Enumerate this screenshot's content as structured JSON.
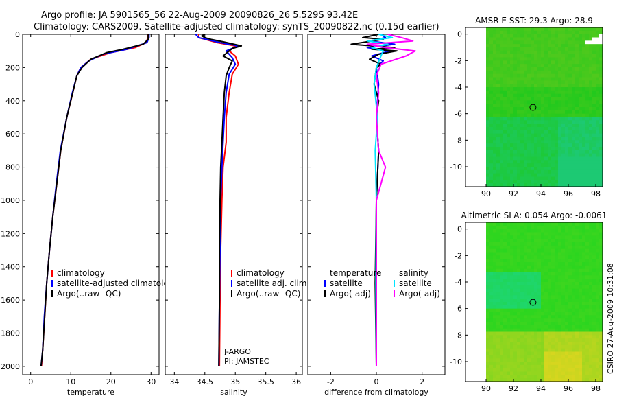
{
  "figure": {
    "title_line1": "Argo profile: JA 5901565_56 22-Aug-2009 20090826_26 5.529S 93.42E",
    "title_line2": "Climatology: CARS2009. Satellite-adjusted climatology: synTS_20090822.nc (0.15d earlier)",
    "credit": "CSIRO 27-Aug-2009 10:31:08",
    "colors": {
      "climatology": "#ff0000",
      "satellite": "#0000ff",
      "argo": "#000000",
      "salinity_satellite": "#00e5ff",
      "salinity_argo": "#ff00ff"
    }
  },
  "chart_data": [
    {
      "id": "temperature",
      "type": "line",
      "xlabel": "temperature",
      "xlim": [
        -2,
        32
      ],
      "ylim": [
        2050,
        0
      ],
      "xticks": [
        0,
        10,
        20,
        30
      ],
      "yticks": [
        0,
        200,
        400,
        600,
        800,
        1000,
        1200,
        1400,
        1600,
        1800,
        2000
      ],
      "legend": [
        "climatology",
        "satellite-adjusted climatology",
        "Argo(..raw -QC)"
      ],
      "series": [
        {
          "name": "climatology",
          "color": "#ff0000",
          "points": [
            [
              29.2,
              0
            ],
            [
              29.2,
              20
            ],
            [
              28.8,
              50
            ],
            [
              26,
              80
            ],
            [
              20,
              110
            ],
            [
              15,
              150
            ],
            [
              12.5,
              200
            ],
            [
              11.5,
              250
            ],
            [
              10.5,
              350
            ],
            [
              9,
              500
            ],
            [
              7.5,
              700
            ],
            [
              6.5,
              900
            ],
            [
              5.5,
              1100
            ],
            [
              4.7,
              1300
            ],
            [
              4,
              1500
            ],
            [
              3.5,
              1700
            ],
            [
              3,
              1900
            ],
            [
              2.7,
              2000
            ]
          ]
        },
        {
          "name": "satellite-adjusted climatology",
          "color": "#0000ff",
          "points": [
            [
              29.5,
              0
            ],
            [
              29.5,
              20
            ],
            [
              29,
              50
            ],
            [
              24,
              90
            ],
            [
              18,
              120
            ],
            [
              14.5,
              160
            ],
            [
              12.5,
              200
            ],
            [
              11.5,
              250
            ],
            [
              10.4,
              350
            ],
            [
              9,
              500
            ],
            [
              7.4,
              700
            ],
            [
              6.4,
              900
            ],
            [
              5.5,
              1100
            ],
            [
              4.7,
              1300
            ],
            [
              4,
              1500
            ],
            [
              3.4,
              1700
            ],
            [
              3,
              1900
            ],
            [
              2.6,
              2000
            ]
          ]
        },
        {
          "name": "Argo(..raw -QC)",
          "color": "#000000",
          "points": [
            [
              29.3,
              0
            ],
            [
              29.3,
              30
            ],
            [
              28,
              60
            ],
            [
              23,
              90
            ],
            [
              19,
              110
            ],
            [
              15,
              150
            ],
            [
              12.8,
              200
            ],
            [
              11.5,
              250
            ],
            [
              10.5,
              350
            ],
            [
              9,
              500
            ],
            [
              7.5,
              700
            ],
            [
              6.5,
              900
            ],
            [
              5.5,
              1100
            ],
            [
              4.7,
              1300
            ],
            [
              4,
              1500
            ],
            [
              3.5,
              1700
            ],
            [
              3,
              1900
            ],
            [
              2.6,
              2000
            ]
          ]
        }
      ]
    },
    {
      "id": "salinity",
      "type": "line",
      "xlabel": "salinity",
      "xlim": [
        33.85,
        36.1
      ],
      "ylim": [
        2050,
        0
      ],
      "xticks": [
        34,
        34.5,
        35,
        35.5,
        36
      ],
      "yticks": [
        0,
        200,
        400,
        600,
        800,
        1000,
        1200,
        1400,
        1600,
        1800,
        2000
      ],
      "legend": [
        "climatology",
        "satellite adj. clim.",
        "Argo(..raw -QC)"
      ],
      "annotation": [
        "J-ARGO",
        "PI: JAMSTEC"
      ],
      "series": [
        {
          "name": "climatology",
          "color": "#ff0000",
          "points": [
            [
              34.4,
              0
            ],
            [
              34.4,
              20
            ],
            [
              34.7,
              50
            ],
            [
              35,
              70
            ],
            [
              34.9,
              100
            ],
            [
              35,
              130
            ],
            [
              35.05,
              180
            ],
            [
              34.95,
              240
            ],
            [
              34.9,
              350
            ],
            [
              34.85,
              500
            ],
            [
              34.85,
              650
            ],
            [
              34.8,
              800
            ],
            [
              34.78,
              1000
            ],
            [
              34.76,
              1300
            ],
            [
              34.75,
              1600
            ],
            [
              34.74,
              2000
            ]
          ]
        },
        {
          "name": "satellite adj. clim.",
          "color": "#0000ff",
          "points": [
            [
              34.35,
              0
            ],
            [
              34.4,
              20
            ],
            [
              34.75,
              50
            ],
            [
              35.05,
              70
            ],
            [
              34.85,
              100
            ],
            [
              34.95,
              140
            ],
            [
              35.0,
              180
            ],
            [
              34.9,
              240
            ],
            [
              34.85,
              350
            ],
            [
              34.82,
              500
            ],
            [
              34.8,
              650
            ],
            [
              34.78,
              800
            ],
            [
              34.76,
              1000
            ],
            [
              34.75,
              1300
            ],
            [
              34.74,
              1600
            ],
            [
              34.73,
              2000
            ]
          ]
        },
        {
          "name": "Argo(..raw -QC)",
          "color": "#000000",
          "points": [
            [
              34.5,
              0
            ],
            [
              34.45,
              10
            ],
            [
              34.5,
              20
            ],
            [
              34.6,
              30
            ],
            [
              34.8,
              45
            ],
            [
              35.1,
              70
            ],
            [
              34.95,
              85
            ],
            [
              34.9,
              100
            ],
            [
              34.8,
              130
            ],
            [
              34.95,
              160
            ],
            [
              34.9,
              200
            ],
            [
              34.85,
              250
            ],
            [
              34.82,
              350
            ],
            [
              34.8,
              500
            ],
            [
              34.78,
              650
            ],
            [
              34.76,
              800
            ],
            [
              34.75,
              1000
            ],
            [
              34.74,
              1300
            ],
            [
              34.74,
              1600
            ],
            [
              34.73,
              2000
            ]
          ]
        }
      ]
    },
    {
      "id": "difference",
      "type": "line",
      "xlabel": "difference from climatology",
      "xlim": [
        -3,
        3
      ],
      "ylim": [
        2050,
        0
      ],
      "xticks": [
        -2,
        0,
        2
      ],
      "yticks": [
        0,
        200,
        400,
        600,
        800,
        1000,
        1200,
        1400,
        1600,
        1800,
        2000
      ],
      "legend_temperature": {
        "title": "temperature",
        "items": [
          "satellite",
          "Argo(-adj)"
        ]
      },
      "legend_salinity": {
        "title": "salinity",
        "items": [
          "satellite",
          "Argo(-adj)"
        ]
      },
      "series": [
        {
          "name": "temperature satellite",
          "color": "#0000ff",
          "points": [
            [
              0.2,
              0
            ],
            [
              0.4,
              20
            ],
            [
              -0.3,
              40
            ],
            [
              0.8,
              60
            ],
            [
              -0.4,
              80
            ],
            [
              0.6,
              100
            ],
            [
              -0.2,
              130
            ],
            [
              0.3,
              160
            ],
            [
              0,
              200
            ],
            [
              0.1,
              300
            ],
            [
              0,
              500
            ],
            [
              0.1,
              700
            ],
            [
              0,
              1000
            ],
            [
              0,
              1500
            ],
            [
              0,
              2000
            ]
          ]
        },
        {
          "name": "temperature Argo(-adj)",
          "color": "#000000",
          "points": [
            [
              0.1,
              0
            ],
            [
              -0.6,
              20
            ],
            [
              0.3,
              30
            ],
            [
              -1.1,
              60
            ],
            [
              0.8,
              80
            ],
            [
              -0.2,
              90
            ],
            [
              0.9,
              100
            ],
            [
              0.1,
              120
            ],
            [
              -0.3,
              150
            ],
            [
              0.2,
              180
            ],
            [
              0,
              200
            ],
            [
              -0.1,
              300
            ],
            [
              0.1,
              400
            ],
            [
              0,
              500
            ],
            [
              0.1,
              700
            ],
            [
              0,
              1000
            ],
            [
              -0.05,
              1500
            ],
            [
              0,
              2000
            ]
          ]
        },
        {
          "name": "salinity satellite",
          "color": "#00e5ff",
          "points": [
            [
              0.1,
              0
            ],
            [
              0.7,
              20
            ],
            [
              -0.4,
              40
            ],
            [
              0.5,
              60
            ],
            [
              -0.2,
              80
            ],
            [
              0.3,
              100
            ],
            [
              0.2,
              130
            ],
            [
              0,
              200
            ],
            [
              -0.1,
              300
            ],
            [
              0.05,
              500
            ],
            [
              -0.05,
              700
            ],
            [
              0,
              1000
            ],
            [
              -0.02,
              1500
            ],
            [
              0,
              2000
            ]
          ]
        },
        {
          "name": "salinity Argo(-adj)",
          "color": "#ff00ff",
          "points": [
            [
              0.5,
              0
            ],
            [
              1.1,
              20
            ],
            [
              1.6,
              40
            ],
            [
              -0.4,
              60
            ],
            [
              0.4,
              80
            ],
            [
              1.7,
              100
            ],
            [
              1.3,
              130
            ],
            [
              0.2,
              180
            ],
            [
              0,
              250
            ],
            [
              0.1,
              350
            ],
            [
              0,
              500
            ],
            [
              0.1,
              700
            ],
            [
              0.4,
              800
            ],
            [
              0.2,
              900
            ],
            [
              0,
              1000
            ],
            [
              0,
              1500
            ],
            [
              0,
              2000
            ]
          ]
        }
      ]
    },
    {
      "id": "sst_map",
      "type": "heatmap",
      "title": "AMSR-E SST: 29.3 Argo: 28.9",
      "xlim": [
        88.5,
        98.5
      ],
      "ylim": [
        -11.5,
        0.5
      ],
      "xticks": [
        90,
        92,
        94,
        96,
        98
      ],
      "yticks": [
        0,
        -2,
        -4,
        -6,
        -8,
        -10
      ],
      "marker": [
        93.42,
        -5.53
      ]
    },
    {
      "id": "sla_map",
      "type": "heatmap",
      "title": "Altimetric SLA: 0.054 Argo: -0.0061",
      "xlim": [
        88.5,
        98.5
      ],
      "ylim": [
        -11.5,
        0.5
      ],
      "xticks": [
        90,
        92,
        94,
        96,
        98
      ],
      "yticks": [
        0,
        -2,
        -4,
        -6,
        -8,
        -10
      ],
      "marker": [
        93.42,
        -5.53
      ]
    }
  ]
}
